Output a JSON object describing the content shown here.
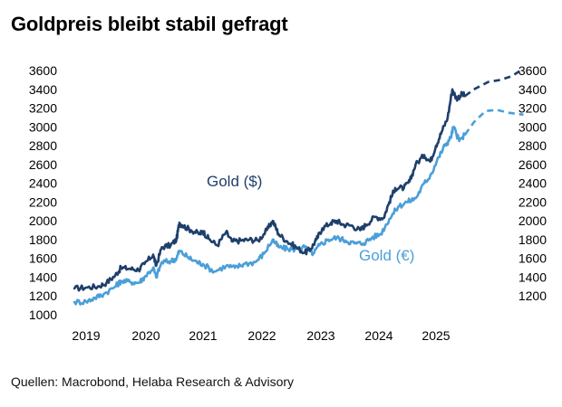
{
  "title": "Goldpreis bleibt stabil gefragt",
  "source": "Quellen: Macrobond, Helaba Research & Advisory",
  "chart_data": {
    "type": "line",
    "x_ticks": [
      "2019",
      "2020",
      "2021",
      "2022",
      "2023",
      "2024",
      "2025"
    ],
    "y_ticks_left": [
      1000,
      1200,
      1400,
      1600,
      1800,
      2000,
      2200,
      2400,
      2600,
      2800,
      3000,
      3200,
      3400,
      3600
    ],
    "y_ticks_right": [
      1200,
      1400,
      1600,
      1800,
      2000,
      2200,
      2400,
      2600,
      2800,
      3000,
      3200,
      3400,
      3600
    ],
    "xlim": [
      2018.75,
      2026.0
    ],
    "ylim": [
      1000,
      3600
    ],
    "grid": false,
    "series": [
      {
        "name": "Gold ($)",
        "color": "#1f3f6b",
        "values": [
          [
            2018.8,
            1280
          ],
          [
            2019.0,
            1290
          ],
          [
            2019.2,
            1300
          ],
          [
            2019.35,
            1340
          ],
          [
            2019.5,
            1420
          ],
          [
            2019.6,
            1500
          ],
          [
            2019.75,
            1490
          ],
          [
            2019.9,
            1480
          ],
          [
            2020.0,
            1540
          ],
          [
            2020.15,
            1640
          ],
          [
            2020.2,
            1520
          ],
          [
            2020.3,
            1720
          ],
          [
            2020.45,
            1740
          ],
          [
            2020.55,
            1800
          ],
          [
            2020.6,
            1980
          ],
          [
            2020.65,
            1950
          ],
          [
            2020.8,
            1900
          ],
          [
            2020.95,
            1860
          ],
          [
            2021.0,
            1890
          ],
          [
            2021.1,
            1810
          ],
          [
            2021.25,
            1740
          ],
          [
            2021.4,
            1880
          ],
          [
            2021.5,
            1780
          ],
          [
            2021.65,
            1790
          ],
          [
            2021.8,
            1800
          ],
          [
            2021.95,
            1790
          ],
          [
            2022.1,
            1900
          ],
          [
            2022.2,
            2000
          ],
          [
            2022.3,
            1860
          ],
          [
            2022.45,
            1780
          ],
          [
            2022.6,
            1720
          ],
          [
            2022.75,
            1660
          ],
          [
            2022.85,
            1700
          ],
          [
            2022.95,
            1800
          ],
          [
            2023.05,
            1920
          ],
          [
            2023.2,
            1980
          ],
          [
            2023.3,
            2000
          ],
          [
            2023.4,
            1960
          ],
          [
            2023.55,
            1950
          ],
          [
            2023.7,
            1900
          ],
          [
            2023.8,
            1960
          ],
          [
            2023.95,
            2040
          ],
          [
            2024.1,
            2030
          ],
          [
            2024.2,
            2200
          ],
          [
            2024.3,
            2350
          ],
          [
            2024.45,
            2350
          ],
          [
            2024.55,
            2420
          ],
          [
            2024.65,
            2600
          ],
          [
            2024.8,
            2700
          ],
          [
            2024.9,
            2630
          ],
          [
            2025.0,
            2800
          ],
          [
            2025.1,
            2950
          ],
          [
            2025.2,
            3100
          ],
          [
            2025.28,
            3400
          ],
          [
            2025.35,
            3300
          ],
          [
            2025.45,
            3350
          ],
          [
            2025.5,
            3330
          ]
        ],
        "forecast": [
          [
            2025.5,
            3330
          ],
          [
            2025.65,
            3400
          ],
          [
            2025.9,
            3480
          ],
          [
            2026.1,
            3500
          ],
          [
            2026.3,
            3540
          ],
          [
            2026.5,
            3620
          ]
        ]
      },
      {
        "name": "Gold (€)",
        "color": "#4a9fd8",
        "values": [
          [
            2018.8,
            1135
          ],
          [
            2019.0,
            1140
          ],
          [
            2019.15,
            1180
          ],
          [
            2019.3,
            1220
          ],
          [
            2019.5,
            1300
          ],
          [
            2019.6,
            1360
          ],
          [
            2019.75,
            1350
          ],
          [
            2019.9,
            1340
          ],
          [
            2020.0,
            1400
          ],
          [
            2020.15,
            1500
          ],
          [
            2020.2,
            1400
          ],
          [
            2020.3,
            1560
          ],
          [
            2020.45,
            1570
          ],
          [
            2020.55,
            1600
          ],
          [
            2020.6,
            1680
          ],
          [
            2020.75,
            1610
          ],
          [
            2020.9,
            1560
          ],
          [
            2021.0,
            1540
          ],
          [
            2021.2,
            1460
          ],
          [
            2021.4,
            1520
          ],
          [
            2021.55,
            1500
          ],
          [
            2021.7,
            1540
          ],
          [
            2021.9,
            1560
          ],
          [
            2022.05,
            1650
          ],
          [
            2022.2,
            1800
          ],
          [
            2022.3,
            1720
          ],
          [
            2022.45,
            1700
          ],
          [
            2022.6,
            1700
          ],
          [
            2022.75,
            1720
          ],
          [
            2022.9,
            1650
          ],
          [
            2023.0,
            1740
          ],
          [
            2023.15,
            1800
          ],
          [
            2023.3,
            1820
          ],
          [
            2023.45,
            1790
          ],
          [
            2023.6,
            1760
          ],
          [
            2023.75,
            1760
          ],
          [
            2023.9,
            1820
          ],
          [
            2024.05,
            1860
          ],
          [
            2024.2,
            2020
          ],
          [
            2024.35,
            2150
          ],
          [
            2024.5,
            2200
          ],
          [
            2024.65,
            2240
          ],
          [
            2024.8,
            2400
          ],
          [
            2024.9,
            2480
          ],
          [
            2025.05,
            2680
          ],
          [
            2025.15,
            2800
          ],
          [
            2025.25,
            2880
          ],
          [
            2025.3,
            3000
          ],
          [
            2025.4,
            2850
          ],
          [
            2025.5,
            2920
          ]
        ],
        "forecast": [
          [
            2025.5,
            2920
          ],
          [
            2025.65,
            3050
          ],
          [
            2025.85,
            3170
          ],
          [
            2026.05,
            3180
          ],
          [
            2026.25,
            3150
          ],
          [
            2026.5,
            3130
          ]
        ]
      }
    ]
  }
}
